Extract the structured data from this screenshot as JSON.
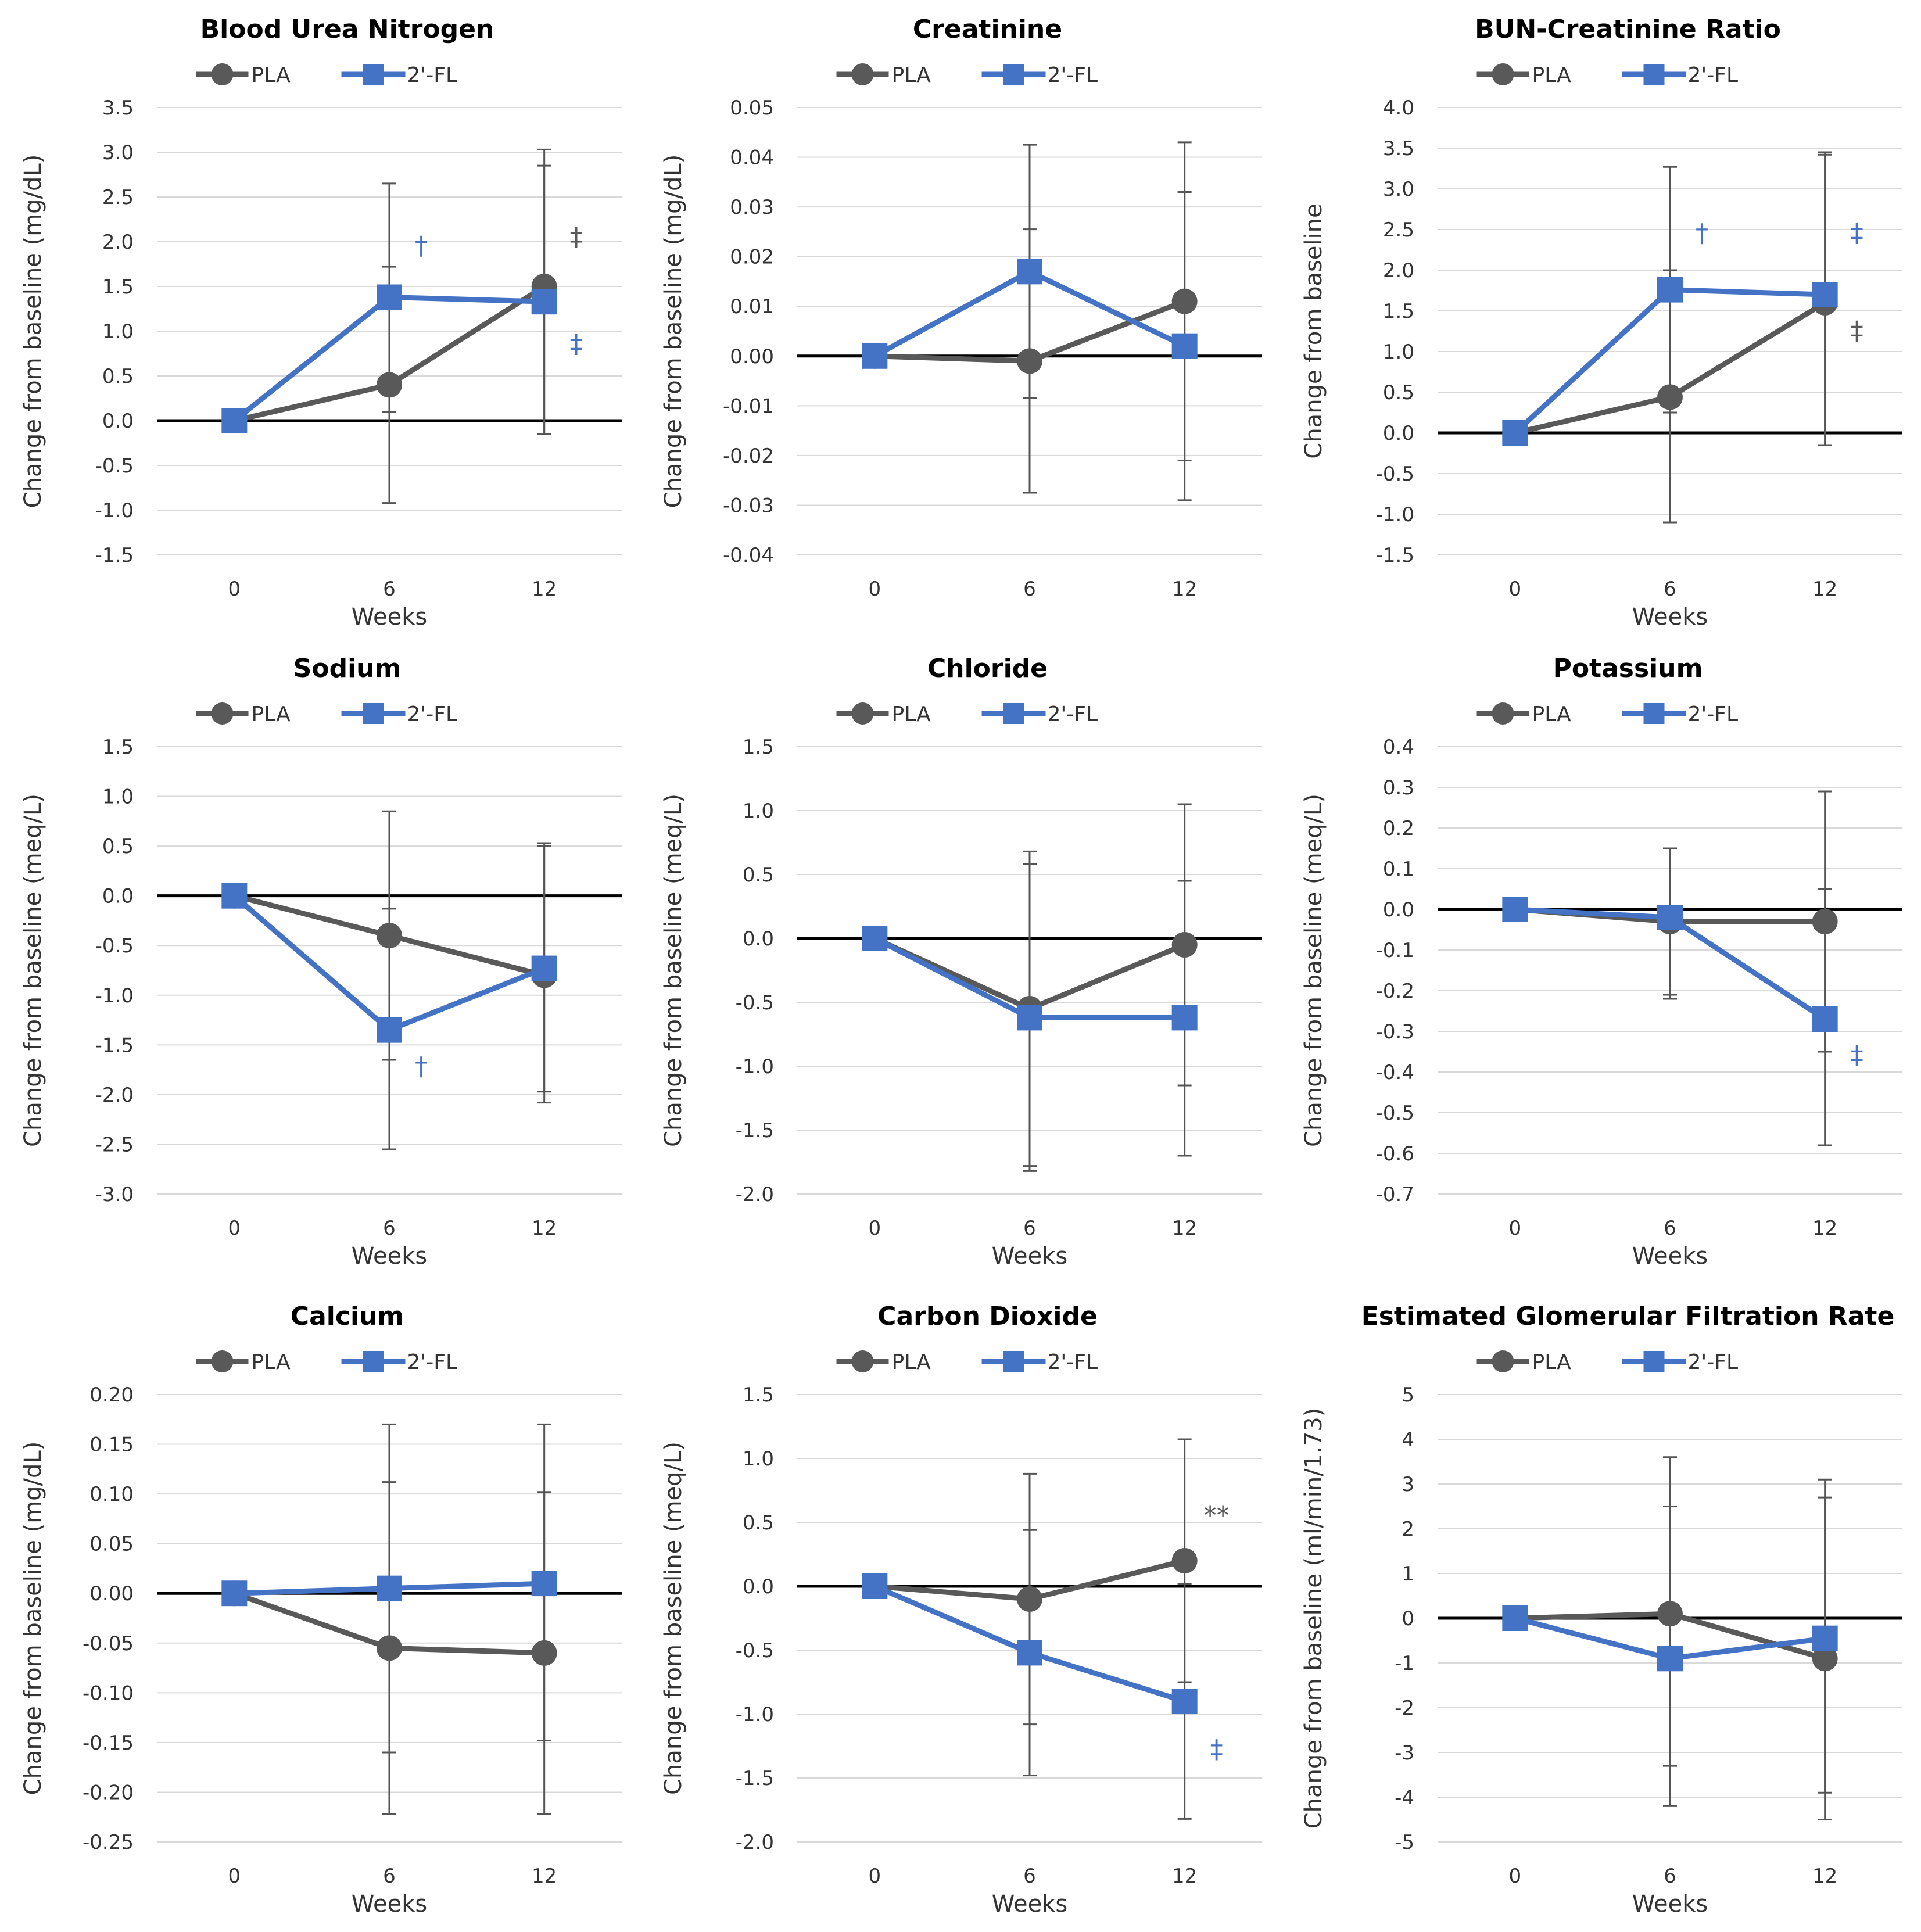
{
  "colors": {
    "pla": "#595959",
    "fl": "#4472c4",
    "zero_line": "#000000",
    "grid": "#d9d9d9"
  },
  "legend": {
    "series_a": "PLA",
    "series_b": "2'-FL"
  },
  "chart_data": [
    {
      "type": "line",
      "title": "Blood Urea Nitrogen",
      "xlabel": "Weeks",
      "ylabel": "Change from baseline (mg/dL)",
      "categories": [
        "0",
        "6",
        "12"
      ],
      "ylim": [
        -1.5,
        3.5
      ],
      "yticks": [
        "3.5",
        "3.0",
        "2.5",
        "2.0",
        "1.5",
        "1.0",
        "0.5",
        "0.0",
        "-0.5",
        "-1.0",
        "-1.5"
      ],
      "series": [
        {
          "name": "PLA",
          "values": [
            0,
            0.4,
            1.5
          ],
          "err_low": [
            0,
            -0.92,
            -0.15
          ],
          "err_high": [
            0,
            1.72,
            2.85
          ]
        },
        {
          "name": "2'-FL",
          "values": [
            0,
            1.38,
            1.33
          ],
          "err_low": [
            0,
            0.1,
            -0.15
          ],
          "err_high": [
            0,
            2.65,
            3.03
          ]
        }
      ],
      "annotations": [
        {
          "text": "†",
          "series": "2'-FL",
          "x": 6,
          "y": 1.95
        },
        {
          "text": "‡",
          "series": "PLA",
          "x": 12,
          "y": 2.05
        },
        {
          "text": "‡",
          "series": "2'-FL",
          "x": 12,
          "y": 0.85
        }
      ]
    },
    {
      "type": "line",
      "title": "Creatinine",
      "xlabel": "",
      "ylabel": "Change from baseline (mg/dL)",
      "categories": [
        "0",
        "6",
        "12"
      ],
      "ylim": [
        -0.04,
        0.05
      ],
      "yticks": [
        "0.05",
        "0.04",
        "0.03",
        "0.02",
        "0.01",
        "0.00",
        "-0.01",
        "-0.02",
        "-0.03",
        "-0.04"
      ],
      "series": [
        {
          "name": "PLA",
          "values": [
            0,
            -0.001,
            0.011
          ],
          "err_low": [
            0,
            -0.0085,
            -0.021
          ],
          "err_high": [
            0,
            0.0255,
            0.043
          ]
        },
        {
          "name": "2'-FL",
          "values": [
            0,
            0.017,
            0.002
          ],
          "err_low": [
            0,
            -0.0275,
            -0.029
          ],
          "err_high": [
            0,
            0.0425,
            0.033
          ]
        }
      ],
      "annotations": []
    },
    {
      "type": "line",
      "title": "BUN-Creatinine Ratio",
      "xlabel": "Weeks",
      "ylabel": "Change from baseline",
      "categories": [
        "0",
        "6",
        "12"
      ],
      "ylim": [
        -1.5,
        4.0
      ],
      "yticks": [
        "4.0",
        "3.5",
        "3.0",
        "2.5",
        "2.0",
        "1.5",
        "1.0",
        "0.5",
        "0.0",
        "-0.5",
        "-1.0",
        "-1.5"
      ],
      "series": [
        {
          "name": "PLA",
          "values": [
            0,
            0.44,
            1.6
          ],
          "err_low": [
            0,
            -1.1,
            -0.15
          ],
          "err_high": [
            0,
            2.0,
            3.42
          ]
        },
        {
          "name": "2'-FL",
          "values": [
            0,
            1.76,
            1.7
          ],
          "err_low": [
            0,
            0.25,
            -0.15
          ],
          "err_high": [
            0,
            3.27,
            3.45
          ]
        }
      ],
      "annotations": [
        {
          "text": "†",
          "series": "2'-FL",
          "x": 6,
          "y": 2.45
        },
        {
          "text": "‡",
          "series": "2'-FL",
          "x": 12,
          "y": 2.45
        },
        {
          "text": "‡",
          "series": "PLA",
          "x": 12,
          "y": 1.25
        }
      ]
    },
    {
      "type": "line",
      "title": "Sodium",
      "xlabel": "Weeks",
      "ylabel": "Change from baseline (meq/L)",
      "categories": [
        "0",
        "6",
        "12"
      ],
      "ylim": [
        -3.0,
        1.5
      ],
      "yticks": [
        "1.5",
        "1.0",
        "0.5",
        "0.0",
        "-0.5",
        "-1.0",
        "-1.5",
        "-2.0",
        "-2.5",
        "-3.0"
      ],
      "series": [
        {
          "name": "PLA",
          "values": [
            0,
            -0.4,
            -0.8
          ],
          "err_low": [
            0,
            -1.65,
            -1.97
          ],
          "err_high": [
            0,
            0.85,
            0.5
          ]
        },
        {
          "name": "2'-FL",
          "values": [
            0,
            -1.35,
            -0.73
          ],
          "err_low": [
            0,
            -2.55,
            -2.08
          ],
          "err_high": [
            0,
            -0.13,
            0.53
          ]
        }
      ],
      "annotations": [
        {
          "text": "†",
          "series": "2'-FL",
          "x": 6,
          "y": -1.72
        }
      ]
    },
    {
      "type": "line",
      "title": "Chloride",
      "xlabel": "Weeks",
      "ylabel": "Change from baseline (meq/L)",
      "categories": [
        "0",
        "6",
        "12"
      ],
      "ylim": [
        -2.0,
        1.5
      ],
      "yticks": [
        "1.5",
        "1.0",
        "0.5",
        "0.0",
        "-0.5",
        "-1.0",
        "-1.5",
        "-2.0"
      ],
      "series": [
        {
          "name": "PLA",
          "values": [
            0,
            -0.55,
            -0.05
          ],
          "err_low": [
            0,
            -1.78,
            -1.15
          ],
          "err_high": [
            0,
            0.68,
            1.05
          ]
        },
        {
          "name": "2'-FL",
          "values": [
            0,
            -0.62,
            -0.62
          ],
          "err_low": [
            0,
            -1.82,
            -1.7
          ],
          "err_high": [
            0,
            0.58,
            0.45
          ]
        }
      ],
      "annotations": []
    },
    {
      "type": "line",
      "title": "Potassium",
      "xlabel": "Weeks",
      "ylabel": "Change from baseline (meq/L)",
      "categories": [
        "0",
        "6",
        "12"
      ],
      "ylim": [
        -0.7,
        0.4
      ],
      "yticks": [
        "0.4",
        "0.3",
        "0.2",
        "0.1",
        "0.0",
        "-0.1",
        "-0.2",
        "-0.3",
        "-0.4",
        "-0.5",
        "-0.6",
        "-0.7"
      ],
      "series": [
        {
          "name": "PLA",
          "values": [
            0,
            -0.03,
            -0.03
          ],
          "err_low": [
            0,
            -0.21,
            -0.35
          ],
          "err_high": [
            0,
            0.15,
            0.29
          ]
        },
        {
          "name": "2'-FL",
          "values": [
            0,
            -0.02,
            -0.27
          ],
          "err_low": [
            0,
            -0.22,
            -0.58
          ],
          "err_high": [
            0,
            0.15,
            0.05
          ]
        }
      ],
      "annotations": [
        {
          "text": "‡",
          "series": "2'-FL",
          "x": 12,
          "y": -0.36
        }
      ]
    },
    {
      "type": "line",
      "title": "Calcium",
      "xlabel": "Weeks",
      "ylabel": "Change from baseline (mg/dL)",
      "categories": [
        "0",
        "6",
        "12"
      ],
      "ylim": [
        -0.25,
        0.2
      ],
      "yticks": [
        "0.20",
        "0.15",
        "0.10",
        "0.05",
        "0.00",
        "-0.05",
        "-0.10",
        "-0.15",
        "-0.20",
        "-0.25"
      ],
      "series": [
        {
          "name": "PLA",
          "values": [
            0,
            -0.055,
            -0.06
          ],
          "err_low": [
            0,
            -0.222,
            -0.222
          ],
          "err_high": [
            0,
            0.112,
            0.102
          ]
        },
        {
          "name": "2'-FL",
          "values": [
            0,
            0.005,
            0.01
          ],
          "err_low": [
            0,
            -0.16,
            -0.148
          ],
          "err_high": [
            0,
            0.17,
            0.17
          ]
        }
      ],
      "annotations": []
    },
    {
      "type": "line",
      "title": "Carbon Dioxide",
      "xlabel": "Weeks",
      "ylabel": "Change from baseline (meq/L)",
      "categories": [
        "0",
        "6",
        "12"
      ],
      "ylim": [
        -2.0,
        1.5
      ],
      "yticks": [
        "1.5",
        "1.0",
        "0.5",
        "0.0",
        "-0.5",
        "-1.0",
        "-1.5",
        "-2.0"
      ],
      "series": [
        {
          "name": "PLA",
          "values": [
            0,
            -0.1,
            0.2
          ],
          "err_low": [
            0,
            -1.08,
            -0.75
          ],
          "err_high": [
            0,
            0.88,
            1.15
          ]
        },
        {
          "name": "2'-FL",
          "values": [
            0,
            -0.52,
            -0.9
          ],
          "err_low": [
            0,
            -1.48,
            -1.82
          ],
          "err_high": [
            0,
            0.44,
            0.02
          ]
        }
      ],
      "annotations": [
        {
          "text": "**",
          "series": "PLA",
          "x": 12,
          "y": 0.55
        },
        {
          "text": "‡",
          "series": "2'-FL",
          "x": 12,
          "y": -1.28
        }
      ]
    },
    {
      "type": "line",
      "title": "Estimated Glomerular Filtration Rate",
      "xlabel": "Weeks",
      "ylabel": "Change from baseline (ml/min/1.73)",
      "categories": [
        "0",
        "6",
        "12"
      ],
      "ylim": [
        -5,
        5
      ],
      "yticks": [
        "5",
        "4",
        "3",
        "2",
        "1",
        "0",
        "-1",
        "-2",
        "-3",
        "-4",
        "-5"
      ],
      "series": [
        {
          "name": "PLA",
          "values": [
            0,
            0.1,
            -0.9
          ],
          "err_low": [
            0,
            -4.2,
            -3.9
          ],
          "err_high": [
            0,
            3.6,
            3.1
          ]
        },
        {
          "name": "2'-FL",
          "values": [
            0,
            -0.9,
            -0.45
          ],
          "err_low": [
            0,
            -3.3,
            -4.5
          ],
          "err_high": [
            0,
            2.5,
            2.7
          ]
        }
      ],
      "annotations": []
    }
  ]
}
